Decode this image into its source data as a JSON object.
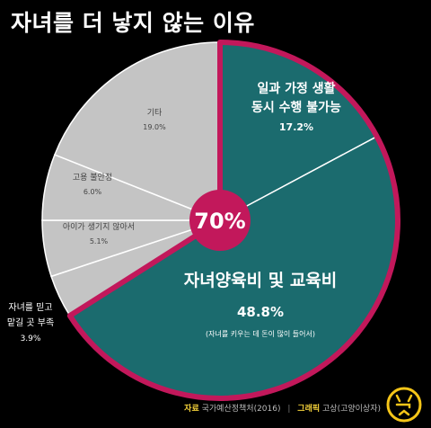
{
  "page": {
    "title": "자녀를 더 낳지 않는 이유",
    "credit": {
      "source_key": "자료",
      "source_val": "국가예산정책처(2016)",
      "separator": "|",
      "graphic_key": "그래픽",
      "graphic_val": "고상(고양이상자)"
    },
    "logo_icon": "cat-logo-icon"
  },
  "chart_data": {
    "type": "pie",
    "title": "자녀를 더 낳지 않는 이유",
    "center_label": "70%",
    "slices": [
      {
        "label_lines": [
          "일과 가정 생활",
          "동시 수행 불가능"
        ],
        "value": 17.2,
        "value_label": "17.2%",
        "highlight": true
      },
      {
        "label_lines": [
          "자녀양육비 및 교육비"
        ],
        "value": 48.8,
        "value_label": "48.8%",
        "note": "(자녀를 키우는 데 돈이 많이 들어서)",
        "highlight": true
      },
      {
        "label_lines": [
          "자녀를 믿고",
          "맡길 곳 부족"
        ],
        "value": 3.9,
        "value_label": "3.9%",
        "highlight": false
      },
      {
        "label_lines": [
          "아이가 생기지 않아서"
        ],
        "value": 5.1,
        "value_label": "5.1%",
        "highlight": false
      },
      {
        "label_lines": [
          "고용 불안정"
        ],
        "value": 6.0,
        "value_label": "6.0%",
        "highlight": false
      },
      {
        "label_lines": [
          "기타"
        ],
        "value": 19.0,
        "value_label": "19.0%",
        "highlight": false
      }
    ],
    "colors": {
      "highlight_fill": "#1b6b6e",
      "other_fill": "#c4c4c4",
      "outline": "#c2185b",
      "center": "#c2185b",
      "separator": "#ffffff"
    }
  }
}
